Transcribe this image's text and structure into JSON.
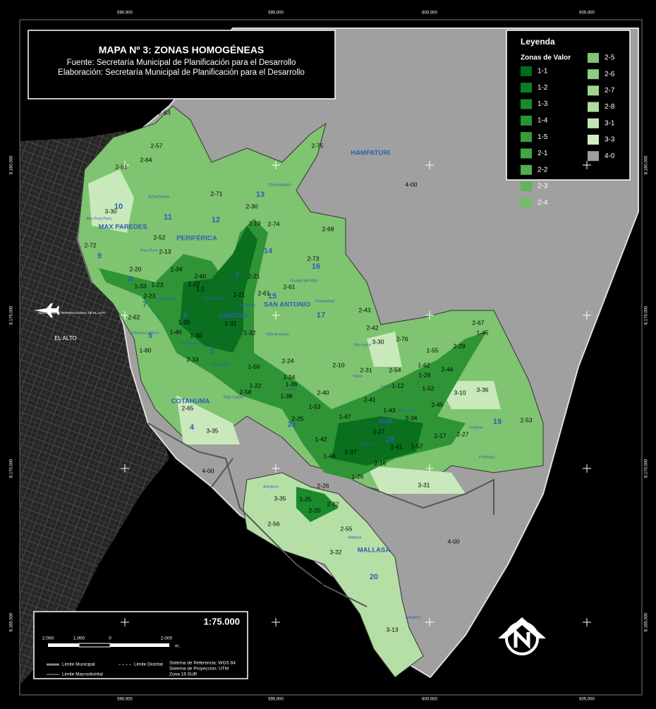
{
  "header": {
    "title": "MAPA Nº 3: ZONAS HOMOGÉNEAS",
    "source": "Fuente: Secretaría Municipal de Planificación para el Desarrollo",
    "elaboration": "Elaboración: Secretaría Municipal de Planificación para el Desarrollo"
  },
  "legend": {
    "title": "Leyenda",
    "subtitle": "Zonas de Valor",
    "items": [
      {
        "label": "1-1",
        "color": "#006b1b"
      },
      {
        "label": "1-2",
        "color": "#0a7f23"
      },
      {
        "label": "1-3",
        "color": "#1a8a2a"
      },
      {
        "label": "1-4",
        "color": "#289432"
      },
      {
        "label": "1-5",
        "color": "#359e3a"
      },
      {
        "label": "2-1",
        "color": "#43a544"
      },
      {
        "label": "2-2",
        "color": "#52ad4e"
      },
      {
        "label": "2-3",
        "color": "#61b55a"
      },
      {
        "label": "2-4",
        "color": "#71bd66"
      },
      {
        "label": "2-5",
        "color": "#80c572"
      },
      {
        "label": "2-6",
        "color": "#90cd80"
      },
      {
        "label": "2-7",
        "color": "#a0d58f"
      },
      {
        "label": "2-8",
        "color": "#b0dc9f"
      },
      {
        "label": "3-1",
        "color": "#c2e4b2"
      },
      {
        "label": "3-3",
        "color": "#d3ecc6"
      },
      {
        "label": "4-0",
        "color": "#9e9e9e"
      }
    ]
  },
  "grid": {
    "eastings": [
      "590.000",
      "595.000",
      "600.000",
      "605.000"
    ],
    "northings": [
      "8.180.000",
      "8.175.000",
      "8.170.000",
      "8.165.000"
    ]
  },
  "scale": {
    "ratio": "1:75.000",
    "bar_labels": [
      "2.000",
      "1.000",
      "0",
      "2.000",
      "m."
    ]
  },
  "notes": {
    "municipal": "Limite Municipal",
    "district": "Limite Distrital",
    "macrodistrict": "Limite Macrodistrital",
    "reference": "Sistema de Referencia: WGS 84",
    "projection": "Sistema de Proyeccion: UTM",
    "zone": "Zona 19 SUR"
  },
  "airport": "AEROPUERTO INTERNACIONAL DE EL ALTO",
  "el_alto": "EL ALTO",
  "macrodistricts": [
    "MAX PAREDES",
    "PERIFÉRICA",
    "CENTRO",
    "SAN ANTONIO",
    "COTAHUMA",
    "SUR",
    "MALLASA",
    "HAMPATURI"
  ],
  "districts": [
    "10",
    "11",
    "12",
    "13",
    "9",
    "8",
    "7",
    "6",
    "5",
    "3",
    "2",
    "14",
    "15",
    "16",
    "17",
    "21",
    "4",
    "18",
    "19",
    "20"
  ],
  "zones": [
    "2-63",
    "2-57",
    "2-64",
    "2-51",
    "3-30",
    "2-72",
    "2-52",
    "2-13",
    "2-20",
    "1-33",
    "1-23",
    "2-23",
    "2-62",
    "1-80",
    "1-40",
    "1-20",
    "1-30",
    "2-33",
    "1-34",
    "2-22",
    "2-60",
    "1-1",
    "1-21",
    "1-32",
    "1-31",
    "2-71",
    "2-30",
    "2-19",
    "2-74",
    "2-21",
    "2-61",
    "2-61",
    "2-68",
    "2-73",
    "2-75",
    "4-00",
    "2-43",
    "2-42",
    "3-30",
    "2-76",
    "2-67",
    "1-45",
    "2-29",
    "1-55",
    "1-62",
    "2-44",
    "1-28",
    "1-52",
    "3-10",
    "3-36",
    "2-45",
    "2-53",
    "2-54",
    "1-12",
    "2-31",
    "2-10",
    "1-50",
    "2-24",
    "1-24",
    "1-22",
    "1-36",
    "1-38",
    "2-40",
    "1-53",
    "2-41",
    "1-47",
    "2-34",
    "1-43",
    "2-58",
    "2-65",
    "3-35",
    "2-25",
    "1-42",
    "1-46",
    "1-37",
    "1-27",
    "1-41",
    "1-57",
    "1-17",
    "2-27",
    "2-16",
    "1-26",
    "3-31",
    "4-00",
    "3-35",
    "1-25",
    "2-26",
    "2-32",
    "2-20",
    "2-56",
    "2-55",
    "3-32",
    "4-00",
    "4-00",
    "3-13"
  ],
  "places": [
    "Achachicala",
    "Alto Pura Pura",
    "Pura Pura",
    "Gran Poder",
    "Santa Bárbara",
    "Miraflores",
    "Chamoco Chico",
    "Tembladerani",
    "Sopocachi",
    "Villa Armonía",
    "Ciudad del Niño",
    "Pampahasi",
    "Chuquiaguillo",
    "Bajo Llojeta",
    "Alto Irpavi",
    "Irpavi",
    "Koani",
    "Achumani",
    "Obrajes",
    "Calacoto",
    "Ovejuyo",
    "Pedregal",
    "Aranjuez",
    "Mallasa",
    "Jupapina"
  ]
}
